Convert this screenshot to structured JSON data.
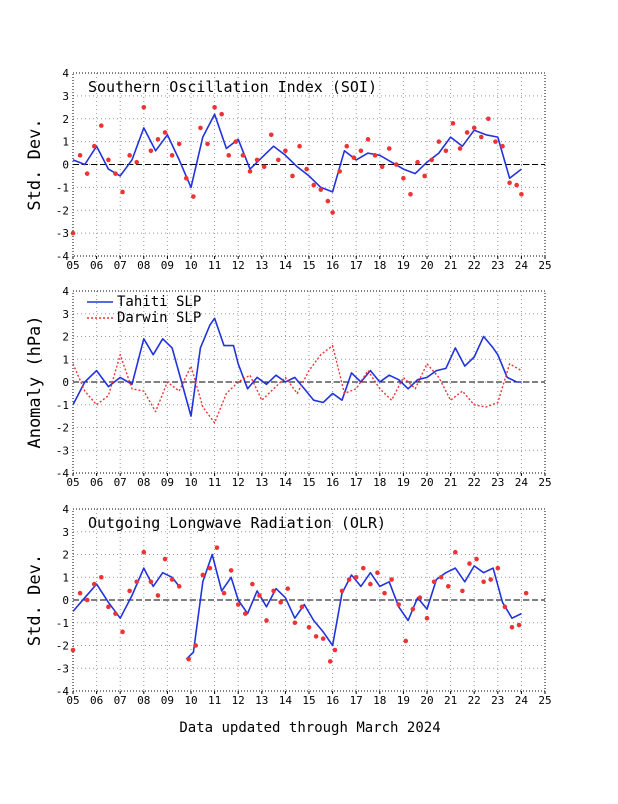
{
  "footer": "Data updated through March 2024",
  "chart_data": [
    {
      "type": "line",
      "title": "Southern Oscillation Index (SOI)",
      "ylabel": "Std. Dev.",
      "xlabel": "",
      "xlim": [
        2005,
        2025
      ],
      "ylim": [
        -4,
        4
      ],
      "x_tick_labels": [
        "05",
        "06",
        "07",
        "08",
        "09",
        "10",
        "11",
        "12",
        "13",
        "14",
        "15",
        "16",
        "17",
        "18",
        "19",
        "20",
        "21",
        "22",
        "23",
        "24",
        "25"
      ],
      "y_tick_labels": [
        "-4",
        "-3",
        "-2",
        "-1",
        "0",
        "1",
        "2",
        "3",
        "4"
      ],
      "grid": true,
      "zero_line": true,
      "series": [
        {
          "style": "line",
          "color": "#2233dd",
          "x": [
            2005.0,
            2005.5,
            2006.0,
            2006.5,
            2007.0,
            2007.5,
            2008.0,
            2008.5,
            2009.0,
            2009.5,
            2010.0,
            2010.5,
            2011.0,
            2011.5,
            2012.0,
            2012.5,
            2013.0,
            2013.5,
            2014.0,
            2014.5,
            2015.0,
            2015.5,
            2016.0,
            2016.5,
            2017.0,
            2017.5,
            2018.0,
            2018.5,
            2019.0,
            2019.5,
            2020.0,
            2020.5,
            2021.0,
            2021.5,
            2022.0,
            2022.5,
            2023.0,
            2023.5,
            2024.0
          ],
          "y": [
            0.2,
            0.0,
            0.8,
            -0.2,
            -0.5,
            0.2,
            1.6,
            0.6,
            1.3,
            0.2,
            -1.0,
            1.2,
            2.2,
            0.7,
            1.1,
            -0.2,
            0.3,
            0.8,
            0.4,
            -0.1,
            -0.5,
            -1.0,
            -1.2,
            0.6,
            0.2,
            0.5,
            0.4,
            0.1,
            -0.2,
            -0.4,
            0.1,
            0.5,
            1.2,
            0.8,
            1.5,
            1.3,
            1.2,
            -0.6,
            -0.2
          ]
        },
        {
          "style": "points",
          "color": "#ee3333",
          "x": [
            2005.0,
            2005.3,
            2005.6,
            2005.9,
            2006.2,
            2006.5,
            2006.8,
            2007.1,
            2007.4,
            2007.7,
            2008.0,
            2008.3,
            2008.6,
            2008.9,
            2009.2,
            2009.5,
            2009.8,
            2010.1,
            2010.4,
            2010.7,
            2011.0,
            2011.3,
            2011.6,
            2011.9,
            2012.2,
            2012.5,
            2012.8,
            2013.1,
            2013.4,
            2013.7,
            2014.0,
            2014.3,
            2014.6,
            2014.9,
            2015.2,
            2015.5,
            2015.8,
            2016.0,
            2016.3,
            2016.6,
            2016.9,
            2017.2,
            2017.5,
            2017.8,
            2018.1,
            2018.4,
            2018.7,
            2019.0,
            2019.3,
            2019.6,
            2019.9,
            2020.2,
            2020.5,
            2020.8,
            2021.1,
            2021.4,
            2021.7,
            2022.0,
            2022.3,
            2022.6,
            2022.9,
            2023.2,
            2023.5,
            2023.8,
            2024.0
          ],
          "y": [
            -3.0,
            0.4,
            -0.4,
            0.8,
            1.7,
            0.2,
            -0.4,
            -1.2,
            0.4,
            0.1,
            2.5,
            0.6,
            1.1,
            1.4,
            0.4,
            0.9,
            -0.6,
            -1.4,
            1.6,
            0.9,
            2.5,
            2.2,
            0.4,
            1.0,
            0.4,
            -0.3,
            0.2,
            -0.1,
            1.3,
            0.2,
            0.6,
            -0.5,
            0.8,
            -0.2,
            -0.9,
            -1.1,
            -1.6,
            -2.1,
            -0.3,
            0.8,
            0.3,
            0.6,
            1.1,
            0.4,
            -0.1,
            0.7,
            0.0,
            -0.6,
            -1.3,
            0.1,
            -0.5,
            0.2,
            1.0,
            0.6,
            1.8,
            0.7,
            1.4,
            1.6,
            1.2,
            2.0,
            1.0,
            0.8,
            -0.8,
            -0.9,
            -1.3
          ]
        }
      ]
    },
    {
      "type": "line",
      "title": "",
      "ylabel": "Anomaly (hPa)",
      "xlabel": "",
      "xlim": [
        2005,
        2025
      ],
      "ylim": [
        -4,
        4
      ],
      "x_tick_labels": [
        "05",
        "06",
        "07",
        "08",
        "09",
        "10",
        "11",
        "12",
        "13",
        "14",
        "15",
        "16",
        "17",
        "18",
        "19",
        "20",
        "21",
        "22",
        "23",
        "24",
        "25"
      ],
      "y_tick_labels": [
        "-4",
        "-3",
        "-2",
        "-1",
        "0",
        "1",
        "2",
        "3",
        "4"
      ],
      "grid": true,
      "zero_line": true,
      "legend": "top-left",
      "series": [
        {
          "name": "Tahiti SLP",
          "style": "line",
          "color": "#2233dd",
          "x": [
            2005.0,
            2005.5,
            2006.0,
            2006.5,
            2007.0,
            2007.5,
            2008.0,
            2008.4,
            2008.8,
            2009.2,
            2009.6,
            2010.0,
            2010.4,
            2010.8,
            2011.0,
            2011.4,
            2011.8,
            2012.0,
            2012.4,
            2012.8,
            2013.2,
            2013.6,
            2014.0,
            2014.4,
            2014.8,
            2015.2,
            2015.6,
            2016.0,
            2016.4,
            2016.8,
            2017.2,
            2017.6,
            2018.0,
            2018.4,
            2018.8,
            2019.2,
            2019.6,
            2020.0,
            2020.4,
            2020.8,
            2021.2,
            2021.6,
            2022.0,
            2022.4,
            2022.8,
            2023.0,
            2023.4,
            2023.8,
            2024.0
          ],
          "y": [
            -1.0,
            0.0,
            0.5,
            -0.2,
            0.2,
            -0.1,
            1.9,
            1.2,
            1.9,
            1.5,
            0.0,
            -1.5,
            1.5,
            2.5,
            2.8,
            1.6,
            1.6,
            0.8,
            -0.3,
            0.2,
            -0.1,
            0.3,
            0.0,
            0.2,
            -0.3,
            -0.8,
            -0.9,
            -0.5,
            -0.8,
            0.4,
            0.0,
            0.5,
            0.0,
            0.3,
            0.1,
            -0.3,
            0.1,
            0.2,
            0.5,
            0.6,
            1.5,
            0.7,
            1.1,
            2.0,
            1.5,
            1.2,
            0.2,
            0.0,
            0.0
          ]
        },
        {
          "name": "Darwin SLP",
          "style": "dashed-line",
          "color": "#ee3333",
          "x": [
            2005.0,
            2005.5,
            2006.0,
            2006.5,
            2007.0,
            2007.5,
            2008.0,
            2008.5,
            2009.0,
            2009.5,
            2010.0,
            2010.5,
            2011.0,
            2011.5,
            2012.0,
            2012.5,
            2013.0,
            2013.5,
            2014.0,
            2014.5,
            2015.0,
            2015.5,
            2016.0,
            2016.5,
            2017.0,
            2017.5,
            2018.0,
            2018.5,
            2019.0,
            2019.5,
            2020.0,
            2020.5,
            2021.0,
            2021.5,
            2022.0,
            2022.5,
            2023.0,
            2023.5,
            2024.0
          ],
          "y": [
            0.8,
            -0.4,
            -1.0,
            -0.6,
            1.2,
            -0.3,
            -0.4,
            -1.3,
            0.0,
            -0.4,
            0.7,
            -1.1,
            -1.8,
            -0.5,
            0.0,
            0.3,
            -0.8,
            -0.3,
            0.2,
            -0.5,
            0.5,
            1.2,
            1.6,
            -0.5,
            -0.3,
            0.5,
            -0.3,
            -0.8,
            0.2,
            -0.3,
            0.8,
            0.2,
            -0.8,
            -0.4,
            -1.0,
            -1.1,
            -0.9,
            0.8,
            0.5
          ]
        }
      ]
    },
    {
      "type": "line",
      "title": "Outgoing Longwave Radiation (OLR)",
      "ylabel": "Std. Dev.",
      "xlabel": "",
      "xlim": [
        2005,
        2025
      ],
      "ylim": [
        -4,
        4
      ],
      "x_tick_labels": [
        "05",
        "06",
        "07",
        "08",
        "09",
        "10",
        "11",
        "12",
        "13",
        "14",
        "15",
        "16",
        "17",
        "18",
        "19",
        "20",
        "21",
        "22",
        "23",
        "24",
        "25"
      ],
      "y_tick_labels": [
        "-4",
        "-3",
        "-2",
        "-1",
        "0",
        "1",
        "2",
        "3",
        "4"
      ],
      "grid": true,
      "zero_line": true,
      "series": [
        {
          "style": "line",
          "color": "#2233dd",
          "gap_after_index": 10,
          "x": [
            2005.0,
            2005.5,
            2006.0,
            2006.5,
            2007.0,
            2007.5,
            2008.0,
            2008.4,
            2008.8,
            2009.2,
            2009.5,
            2009.8,
            2010.1,
            2010.5,
            2010.9,
            2011.3,
            2011.7,
            2012.0,
            2012.4,
            2012.8,
            2013.2,
            2013.6,
            2014.0,
            2014.4,
            2014.8,
            2015.2,
            2015.6,
            2016.0,
            2016.4,
            2016.8,
            2017.2,
            2017.6,
            2018.0,
            2018.4,
            2018.8,
            2019.2,
            2019.6,
            2020.0,
            2020.4,
            2020.8,
            2021.2,
            2021.6,
            2022.0,
            2022.4,
            2022.8,
            2023.2,
            2023.6,
            2024.0
          ],
          "y": [
            -0.5,
            0.1,
            0.7,
            -0.1,
            -0.8,
            0.2,
            1.4,
            0.6,
            1.2,
            1.0,
            0.6,
            -2.6,
            -2.3,
            0.8,
            2.0,
            0.4,
            1.0,
            0.0,
            -0.6,
            0.4,
            -0.3,
            0.5,
            0.1,
            -0.8,
            -0.2,
            -0.9,
            -1.4,
            -2.0,
            0.3,
            1.1,
            0.6,
            1.2,
            0.6,
            0.8,
            -0.3,
            -0.9,
            0.1,
            -0.4,
            0.9,
            1.2,
            1.4,
            0.8,
            1.5,
            1.2,
            1.4,
            -0.1,
            -0.8,
            -0.6
          ]
        },
        {
          "style": "points",
          "color": "#ee3333",
          "x": [
            2005.0,
            2005.3,
            2005.6,
            2005.9,
            2006.2,
            2006.5,
            2006.8,
            2007.1,
            2007.4,
            2007.7,
            2008.0,
            2008.3,
            2008.6,
            2008.9,
            2009.2,
            2009.5,
            2009.9,
            2010.2,
            2010.5,
            2010.8,
            2011.1,
            2011.4,
            2011.7,
            2012.0,
            2012.3,
            2012.6,
            2012.9,
            2013.2,
            2013.5,
            2013.8,
            2014.1,
            2014.4,
            2014.7,
            2015.0,
            2015.3,
            2015.6,
            2015.9,
            2016.1,
            2016.4,
            2016.7,
            2017.0,
            2017.3,
            2017.6,
            2017.9,
            2018.2,
            2018.5,
            2018.8,
            2019.1,
            2019.4,
            2019.7,
            2020.0,
            2020.3,
            2020.6,
            2020.9,
            2021.2,
            2021.5,
            2021.8,
            2022.1,
            2022.4,
            2022.7,
            2023.0,
            2023.3,
            2023.6,
            2023.9,
            2024.2
          ],
          "y": [
            -2.2,
            0.3,
            0.0,
            0.7,
            1.0,
            -0.3,
            -0.6,
            -1.4,
            0.4,
            0.8,
            2.1,
            0.8,
            0.2,
            1.8,
            0.9,
            0.6,
            -2.6,
            -2.0,
            1.1,
            1.4,
            2.3,
            0.3,
            1.3,
            -0.2,
            -0.6,
            0.7,
            0.2,
            -0.9,
            0.4,
            -0.1,
            0.5,
            -1.0,
            -0.3,
            -1.2,
            -1.6,
            -1.7,
            -2.7,
            -2.2,
            0.4,
            0.9,
            1.0,
            1.4,
            0.7,
            1.2,
            0.3,
            0.9,
            -0.2,
            -1.8,
            -0.4,
            0.1,
            -0.8,
            0.8,
            1.0,
            0.6,
            2.1,
            0.4,
            1.6,
            1.8,
            0.8,
            0.9,
            1.4,
            -0.3,
            -1.2,
            -1.1,
            0.3
          ]
        }
      ]
    }
  ]
}
